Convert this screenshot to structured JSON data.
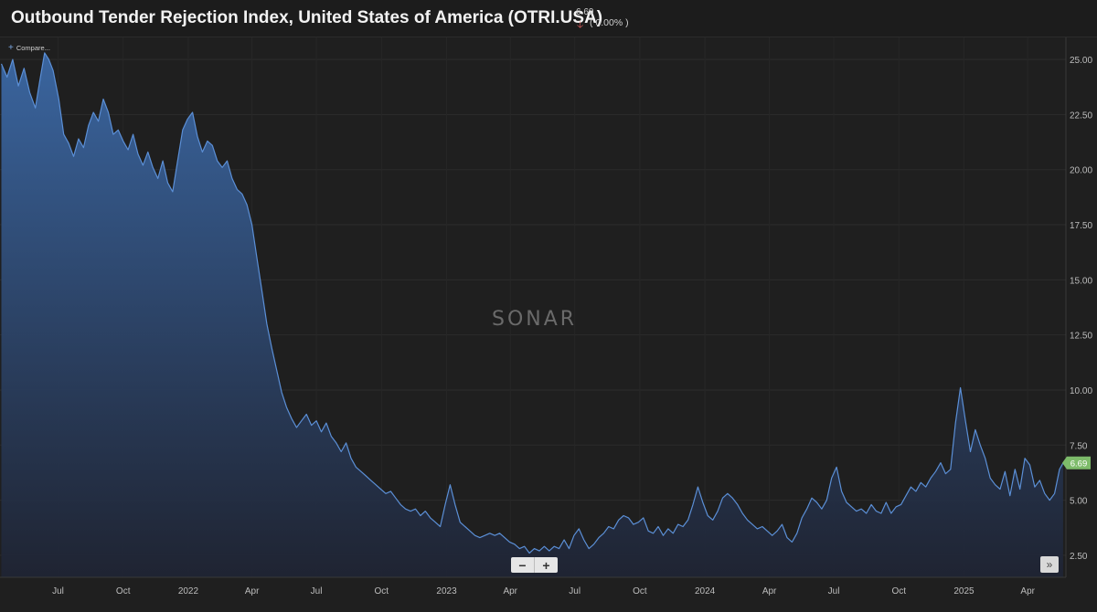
{
  "header": {
    "title": "Outbound Tender Rejection Index, United States of America (OTRI.USA)",
    "last_value": "6.69",
    "change": "( 0.00% )",
    "direction_icon": "arrow-down-icon"
  },
  "toolbar": {
    "compare_label": "Compare..."
  },
  "watermark": "SONAR",
  "controls": {
    "zoom_out": "−",
    "zoom_in": "+",
    "scroll_end": "»"
  },
  "colors": {
    "line": "#5b8fd6",
    "fill_top": "#3a659f",
    "fill_bottom": "#1f2433",
    "badge": "#7dbb6a",
    "down": "#e35d5d"
  },
  "chart_data": {
    "type": "area",
    "title": "Outbound Tender Rejection Index, United States of America (OTRI.USA)",
    "xlabel": "",
    "ylabel": "",
    "ylim": [
      1.5,
      26.0
    ],
    "yticks": [
      "25.00",
      "22.50",
      "20.00",
      "17.50",
      "15.00",
      "12.50",
      "10.00",
      "7.50",
      "5.00",
      "2.50"
    ],
    "ytick_values": [
      25,
      22.5,
      20,
      17.5,
      15,
      12.5,
      10,
      7.5,
      5,
      2.5
    ],
    "xticks": [
      "Jul",
      "Oct",
      "2022",
      "Apr",
      "Jul",
      "Oct",
      "2023",
      "Apr",
      "Jul",
      "Oct",
      "2024",
      "Apr",
      "Jul",
      "Oct",
      "2025",
      "Apr"
    ],
    "xtick_dates": [
      "2021-07-01",
      "2021-10-01",
      "2022-01-01",
      "2022-04-01",
      "2022-07-01",
      "2022-10-01",
      "2023-01-01",
      "2023-04-01",
      "2023-07-01",
      "2023-10-01",
      "2024-01-01",
      "2024-04-01",
      "2024-07-01",
      "2024-10-01",
      "2025-01-01",
      "2025-04-01"
    ],
    "xlim": [
      "2021-04-10",
      "2025-05-25"
    ],
    "last_value_label": "6.69",
    "grid": true,
    "series": [
      {
        "points": [
          [
            "2021-04-12",
            24.8
          ],
          [
            "2021-04-20",
            24.2
          ],
          [
            "2021-04-28",
            25.0
          ],
          [
            "2021-05-06",
            23.8
          ],
          [
            "2021-05-14",
            24.6
          ],
          [
            "2021-05-22",
            23.5
          ],
          [
            "2021-05-30",
            22.8
          ],
          [
            "2021-06-05",
            24.0
          ],
          [
            "2021-06-12",
            25.3
          ],
          [
            "2021-06-18",
            25.0
          ],
          [
            "2021-06-24",
            24.5
          ],
          [
            "2021-07-02",
            23.2
          ],
          [
            "2021-07-09",
            21.6
          ],
          [
            "2021-07-16",
            21.2
          ],
          [
            "2021-07-23",
            20.6
          ],
          [
            "2021-07-30",
            21.4
          ],
          [
            "2021-08-06",
            21.0
          ],
          [
            "2021-08-13",
            22.0
          ],
          [
            "2021-08-20",
            22.6
          ],
          [
            "2021-08-27",
            22.2
          ],
          [
            "2021-09-03",
            23.2
          ],
          [
            "2021-09-10",
            22.6
          ],
          [
            "2021-09-17",
            21.6
          ],
          [
            "2021-09-24",
            21.8
          ],
          [
            "2021-10-01",
            21.3
          ],
          [
            "2021-10-08",
            20.9
          ],
          [
            "2021-10-15",
            21.6
          ],
          [
            "2021-10-22",
            20.7
          ],
          [
            "2021-10-29",
            20.2
          ],
          [
            "2021-11-05",
            20.8
          ],
          [
            "2021-11-12",
            20.1
          ],
          [
            "2021-11-19",
            19.6
          ],
          [
            "2021-11-26",
            20.4
          ],
          [
            "2021-12-03",
            19.4
          ],
          [
            "2021-12-10",
            19.0
          ],
          [
            "2021-12-17",
            20.4
          ],
          [
            "2021-12-24",
            21.8
          ],
          [
            "2021-12-31",
            22.3
          ],
          [
            "2022-01-07",
            22.6
          ],
          [
            "2022-01-14",
            21.5
          ],
          [
            "2022-01-21",
            20.8
          ],
          [
            "2022-01-28",
            21.3
          ],
          [
            "2022-02-04",
            21.1
          ],
          [
            "2022-02-11",
            20.4
          ],
          [
            "2022-02-18",
            20.1
          ],
          [
            "2022-02-25",
            20.4
          ],
          [
            "2022-03-04",
            19.6
          ],
          [
            "2022-03-11",
            19.1
          ],
          [
            "2022-03-18",
            18.9
          ],
          [
            "2022-03-25",
            18.4
          ],
          [
            "2022-04-01",
            17.5
          ],
          [
            "2022-04-08",
            16.0
          ],
          [
            "2022-04-15",
            14.5
          ],
          [
            "2022-04-22",
            13.0
          ],
          [
            "2022-04-29",
            11.9
          ],
          [
            "2022-05-06",
            10.9
          ],
          [
            "2022-05-13",
            9.9
          ],
          [
            "2022-05-20",
            9.2
          ],
          [
            "2022-05-27",
            8.7
          ],
          [
            "2022-06-03",
            8.3
          ],
          [
            "2022-06-10",
            8.6
          ],
          [
            "2022-06-17",
            8.9
          ],
          [
            "2022-06-24",
            8.4
          ],
          [
            "2022-07-01",
            8.6
          ],
          [
            "2022-07-08",
            8.1
          ],
          [
            "2022-07-15",
            8.5
          ],
          [
            "2022-07-22",
            7.9
          ],
          [
            "2022-07-29",
            7.6
          ],
          [
            "2022-08-05",
            7.2
          ],
          [
            "2022-08-12",
            7.6
          ],
          [
            "2022-08-19",
            6.9
          ],
          [
            "2022-08-26",
            6.5
          ],
          [
            "2022-09-02",
            6.3
          ],
          [
            "2022-09-09",
            6.1
          ],
          [
            "2022-09-16",
            5.9
          ],
          [
            "2022-09-23",
            5.7
          ],
          [
            "2022-09-30",
            5.5
          ],
          [
            "2022-10-07",
            5.3
          ],
          [
            "2022-10-14",
            5.4
          ],
          [
            "2022-10-21",
            5.1
          ],
          [
            "2022-10-28",
            4.8
          ],
          [
            "2022-11-04",
            4.6
          ],
          [
            "2022-11-11",
            4.5
          ],
          [
            "2022-11-18",
            4.6
          ],
          [
            "2022-11-25",
            4.3
          ],
          [
            "2022-12-02",
            4.5
          ],
          [
            "2022-12-09",
            4.2
          ],
          [
            "2022-12-16",
            4.0
          ],
          [
            "2022-12-23",
            3.8
          ],
          [
            "2022-12-30",
            4.8
          ],
          [
            "2023-01-06",
            5.7
          ],
          [
            "2023-01-13",
            4.8
          ],
          [
            "2023-01-20",
            4.0
          ],
          [
            "2023-01-27",
            3.8
          ],
          [
            "2023-02-03",
            3.6
          ],
          [
            "2023-02-10",
            3.4
          ],
          [
            "2023-02-17",
            3.3
          ],
          [
            "2023-02-24",
            3.4
          ],
          [
            "2023-03-03",
            3.5
          ],
          [
            "2023-03-10",
            3.4
          ],
          [
            "2023-03-17",
            3.5
          ],
          [
            "2023-03-24",
            3.3
          ],
          [
            "2023-03-31",
            3.1
          ],
          [
            "2023-04-07",
            3.0
          ],
          [
            "2023-04-14",
            2.8
          ],
          [
            "2023-04-21",
            2.9
          ],
          [
            "2023-04-28",
            2.6
          ],
          [
            "2023-05-05",
            2.8
          ],
          [
            "2023-05-12",
            2.7
          ],
          [
            "2023-05-19",
            2.9
          ],
          [
            "2023-05-26",
            2.7
          ],
          [
            "2023-06-02",
            2.9
          ],
          [
            "2023-06-09",
            2.8
          ],
          [
            "2023-06-16",
            3.2
          ],
          [
            "2023-06-23",
            2.8
          ],
          [
            "2023-06-30",
            3.4
          ],
          [
            "2023-07-07",
            3.7
          ],
          [
            "2023-07-14",
            3.2
          ],
          [
            "2023-07-21",
            2.8
          ],
          [
            "2023-07-28",
            3.0
          ],
          [
            "2023-08-04",
            3.3
          ],
          [
            "2023-08-11",
            3.5
          ],
          [
            "2023-08-18",
            3.8
          ],
          [
            "2023-08-25",
            3.7
          ],
          [
            "2023-09-01",
            4.1
          ],
          [
            "2023-09-08",
            4.3
          ],
          [
            "2023-09-15",
            4.2
          ],
          [
            "2023-09-22",
            3.9
          ],
          [
            "2023-09-29",
            4.0
          ],
          [
            "2023-10-06",
            4.2
          ],
          [
            "2023-10-13",
            3.6
          ],
          [
            "2023-10-20",
            3.5
          ],
          [
            "2023-10-27",
            3.8
          ],
          [
            "2023-11-03",
            3.4
          ],
          [
            "2023-11-10",
            3.7
          ],
          [
            "2023-11-17",
            3.5
          ],
          [
            "2023-11-24",
            3.9
          ],
          [
            "2023-12-01",
            3.8
          ],
          [
            "2023-12-08",
            4.1
          ],
          [
            "2023-12-15",
            4.8
          ],
          [
            "2023-12-22",
            5.6
          ],
          [
            "2023-12-29",
            4.9
          ],
          [
            "2024-01-05",
            4.3
          ],
          [
            "2024-01-12",
            4.1
          ],
          [
            "2024-01-19",
            4.5
          ],
          [
            "2024-01-26",
            5.1
          ],
          [
            "2024-02-02",
            5.3
          ],
          [
            "2024-02-09",
            5.1
          ],
          [
            "2024-02-16",
            4.8
          ],
          [
            "2024-02-23",
            4.4
          ],
          [
            "2024-03-01",
            4.1
          ],
          [
            "2024-03-08",
            3.9
          ],
          [
            "2024-03-15",
            3.7
          ],
          [
            "2024-03-22",
            3.8
          ],
          [
            "2024-03-29",
            3.6
          ],
          [
            "2024-04-05",
            3.4
          ],
          [
            "2024-04-12",
            3.6
          ],
          [
            "2024-04-19",
            3.9
          ],
          [
            "2024-04-26",
            3.3
          ],
          [
            "2024-05-03",
            3.1
          ],
          [
            "2024-05-10",
            3.5
          ],
          [
            "2024-05-17",
            4.2
          ],
          [
            "2024-05-24",
            4.6
          ],
          [
            "2024-05-31",
            5.1
          ],
          [
            "2024-06-07",
            4.9
          ],
          [
            "2024-06-14",
            4.6
          ],
          [
            "2024-06-21",
            5.0
          ],
          [
            "2024-06-28",
            6.0
          ],
          [
            "2024-07-05",
            6.5
          ],
          [
            "2024-07-12",
            5.4
          ],
          [
            "2024-07-19",
            4.9
          ],
          [
            "2024-07-26",
            4.7
          ],
          [
            "2024-08-02",
            4.5
          ],
          [
            "2024-08-09",
            4.6
          ],
          [
            "2024-08-16",
            4.4
          ],
          [
            "2024-08-23",
            4.8
          ],
          [
            "2024-08-30",
            4.5
          ],
          [
            "2024-09-06",
            4.4
          ],
          [
            "2024-09-13",
            4.9
          ],
          [
            "2024-09-20",
            4.4
          ],
          [
            "2024-09-27",
            4.7
          ],
          [
            "2024-10-04",
            4.8
          ],
          [
            "2024-10-11",
            5.2
          ],
          [
            "2024-10-18",
            5.6
          ],
          [
            "2024-10-25",
            5.4
          ],
          [
            "2024-11-01",
            5.8
          ],
          [
            "2024-11-08",
            5.6
          ],
          [
            "2024-11-15",
            6.0
          ],
          [
            "2024-11-22",
            6.3
          ],
          [
            "2024-11-29",
            6.7
          ],
          [
            "2024-12-06",
            6.2
          ],
          [
            "2024-12-13",
            6.4
          ],
          [
            "2024-12-20",
            8.5
          ],
          [
            "2024-12-27",
            10.1
          ],
          [
            "2025-01-03",
            8.6
          ],
          [
            "2025-01-10",
            7.2
          ],
          [
            "2025-01-17",
            8.2
          ],
          [
            "2025-01-24",
            7.5
          ],
          [
            "2025-01-31",
            6.9
          ],
          [
            "2025-02-07",
            6.0
          ],
          [
            "2025-02-14",
            5.7
          ],
          [
            "2025-02-21",
            5.5
          ],
          [
            "2025-02-28",
            6.3
          ],
          [
            "2025-03-07",
            5.2
          ],
          [
            "2025-03-14",
            6.4
          ],
          [
            "2025-03-21",
            5.5
          ],
          [
            "2025-03-28",
            6.9
          ],
          [
            "2025-04-04",
            6.6
          ],
          [
            "2025-04-11",
            5.6
          ],
          [
            "2025-04-18",
            5.9
          ],
          [
            "2025-04-25",
            5.3
          ],
          [
            "2025-05-02",
            5.0
          ],
          [
            "2025-05-09",
            5.3
          ],
          [
            "2025-05-16",
            6.4
          ],
          [
            "2025-05-21",
            6.69
          ]
        ]
      }
    ]
  }
}
